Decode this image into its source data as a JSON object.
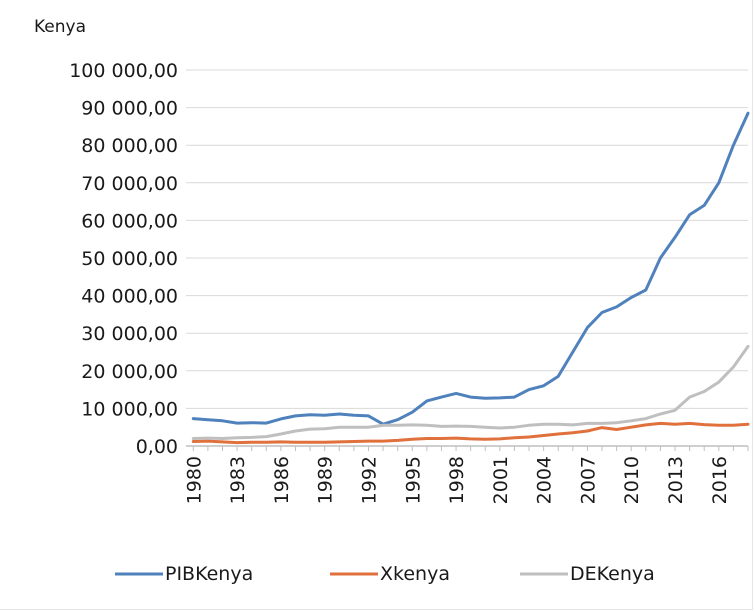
{
  "chart_data": {
    "type": "line",
    "title": "Kenya",
    "xlabel": "",
    "ylabel": "",
    "ylim": [
      0,
      100000
    ],
    "yticks": [
      "0,00",
      "10 000,00",
      "20 000,00",
      "30 000,00",
      "40 000,00",
      "50 000,00",
      "60 000,00",
      "70 000,00",
      "80 000,00",
      "90 000,00",
      "100 000,00"
    ],
    "xticks": [
      "1980",
      "1983",
      "1986",
      "1989",
      "1992",
      "1995",
      "1998",
      "2001",
      "2004",
      "2007",
      "2010",
      "2013",
      "2016"
    ],
    "x": [
      1980,
      1981,
      1982,
      1983,
      1984,
      1985,
      1986,
      1987,
      1988,
      1989,
      1990,
      1991,
      1992,
      1993,
      1994,
      1995,
      1996,
      1997,
      1998,
      1999,
      2000,
      2001,
      2002,
      2003,
      2004,
      2005,
      2006,
      2007,
      2008,
      2009,
      2010,
      2011,
      2012,
      2013,
      2014,
      2015,
      2016,
      2017,
      2018
    ],
    "grid": true,
    "legend_position": "bottom",
    "series": [
      {
        "name": "PIBKenya",
        "color": "#4f81bd",
        "values": [
          7300,
          7000,
          6700,
          6100,
          6200,
          6100,
          7200,
          8000,
          8300,
          8200,
          8500,
          8200,
          8000,
          5800,
          7000,
          9000,
          12000,
          13000,
          14000,
          13000,
          12700,
          12800,
          13000,
          15000,
          16000,
          18500,
          25000,
          31500,
          35500,
          37000,
          39500,
          41500,
          50000,
          55500,
          61500,
          64000,
          70000,
          80000,
          88500
        ]
      },
      {
        "name": "Xkenya",
        "color": "#e0703c",
        "values": [
          1200,
          1300,
          1100,
          900,
          1000,
          1000,
          1100,
          1000,
          1000,
          1000,
          1100,
          1200,
          1300,
          1300,
          1500,
          1800,
          2000,
          2000,
          2100,
          1900,
          1800,
          1900,
          2200,
          2400,
          2800,
          3200,
          3500,
          4000,
          4900,
          4400,
          5000,
          5600,
          6000,
          5800,
          6000,
          5700,
          5500,
          5500,
          5800
        ]
      },
      {
        "name": "DEKenya",
        "color": "#bfbfbf",
        "values": [
          2000,
          2100,
          2000,
          2200,
          2300,
          2500,
          3200,
          4000,
          4500,
          4600,
          5000,
          5000,
          5000,
          5500,
          5500,
          5600,
          5500,
          5200,
          5300,
          5200,
          5000,
          4800,
          5000,
          5500,
          5800,
          5800,
          5600,
          6000,
          6000,
          6200,
          6700,
          7300,
          8500,
          9500,
          13000,
          14500,
          17000,
          21000,
          26500
        ]
      }
    ]
  }
}
